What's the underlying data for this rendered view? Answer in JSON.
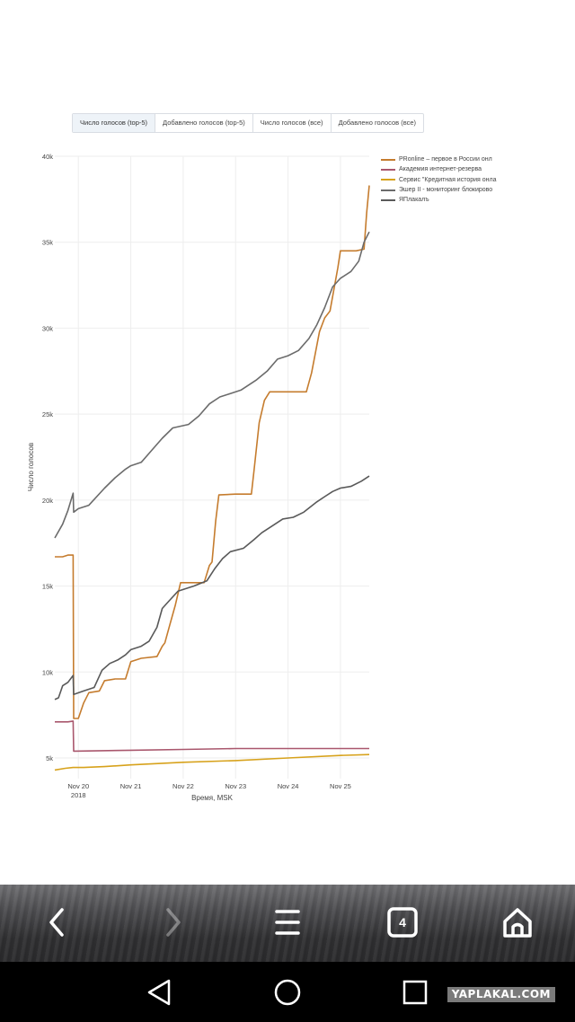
{
  "tabs": [
    {
      "label": "Число голосов (top-5)",
      "active": true
    },
    {
      "label": "Добавлено голосов (top-5)",
      "active": false
    },
    {
      "label": "Число голосов (все)",
      "active": false
    },
    {
      "label": "Добавлено голосов (все)",
      "active": false
    }
  ],
  "browser_nav": {
    "tab_count": "4"
  },
  "watermark": "YAPLAKAL.COM",
  "chart_data": {
    "type": "line",
    "xlabel": "Время, MSK",
    "ylabel": "Число голосов",
    "x_unit": "days, Nov 2018",
    "xlim": [
      19.55,
      25.55
    ],
    "ylim": [
      3800,
      40000
    ],
    "x_ticks": [
      {
        "x": 20,
        "label": "Nov 20",
        "sublabel": "2018"
      },
      {
        "x": 21,
        "label": "Nov 21",
        "sublabel": ""
      },
      {
        "x": 22,
        "label": "Nov 22",
        "sublabel": ""
      },
      {
        "x": 23,
        "label": "Nov 23",
        "sublabel": ""
      },
      {
        "x": 24,
        "label": "Nov 24",
        "sublabel": ""
      },
      {
        "x": 25,
        "label": "Nov 25",
        "sublabel": ""
      }
    ],
    "y_ticks": [
      {
        "y": 5000,
        "label": "5k"
      },
      {
        "y": 10000,
        "label": "10k"
      },
      {
        "y": 15000,
        "label": "15k"
      },
      {
        "y": 20000,
        "label": "20k"
      },
      {
        "y": 25000,
        "label": "25k"
      },
      {
        "y": 30000,
        "label": "30k"
      },
      {
        "y": 35000,
        "label": "35k"
      },
      {
        "y": 40000,
        "label": "40k"
      }
    ],
    "grid": true,
    "legend_position": "right",
    "series": [
      {
        "name": "PRonline – первое в России онл",
        "color": "#c57c2e",
        "points": [
          [
            19.55,
            16700
          ],
          [
            19.7,
            16700
          ],
          [
            19.8,
            16800
          ],
          [
            19.9,
            16800
          ],
          [
            19.91,
            7300
          ],
          [
            20.0,
            7300
          ],
          [
            20.1,
            8200
          ],
          [
            20.2,
            8800
          ],
          [
            20.4,
            8900
          ],
          [
            20.5,
            9500
          ],
          [
            20.7,
            9600
          ],
          [
            20.9,
            9600
          ],
          [
            21.0,
            10600
          ],
          [
            21.2,
            10800
          ],
          [
            21.5,
            10900
          ],
          [
            21.6,
            11500
          ],
          [
            21.65,
            11700
          ],
          [
            21.75,
            12800
          ],
          [
            21.85,
            13900
          ],
          [
            21.95,
            15200
          ],
          [
            22.2,
            15200
          ],
          [
            22.4,
            15200
          ],
          [
            22.5,
            16200
          ],
          [
            22.55,
            16400
          ],
          [
            22.62,
            18800
          ],
          [
            22.68,
            20300
          ],
          [
            23.0,
            20350
          ],
          [
            23.3,
            20350
          ],
          [
            23.35,
            21700
          ],
          [
            23.45,
            24500
          ],
          [
            23.55,
            25800
          ],
          [
            23.65,
            26300
          ],
          [
            24.0,
            26300
          ],
          [
            24.35,
            26300
          ],
          [
            24.45,
            27400
          ],
          [
            24.6,
            29800
          ],
          [
            24.7,
            30600
          ],
          [
            24.8,
            31000
          ],
          [
            24.95,
            33500
          ],
          [
            25.0,
            34500
          ],
          [
            25.3,
            34500
          ],
          [
            25.45,
            34600
          ],
          [
            25.5,
            36700
          ],
          [
            25.55,
            38300
          ]
        ]
      },
      {
        "name": "Академия интернет-резерва",
        "color": "#a9576d",
        "points": [
          [
            19.55,
            7100
          ],
          [
            19.8,
            7100
          ],
          [
            19.9,
            7150
          ],
          [
            19.91,
            5400
          ],
          [
            21.0,
            5450
          ],
          [
            22.0,
            5500
          ],
          [
            23.0,
            5550
          ],
          [
            24.0,
            5550
          ],
          [
            25.55,
            5550
          ]
        ]
      },
      {
        "name": "Сервис \"Кредитная история онла",
        "color": "#d7a21c",
        "points": [
          [
            19.55,
            4300
          ],
          [
            19.75,
            4400
          ],
          [
            19.9,
            4450
          ],
          [
            20.1,
            4450
          ],
          [
            20.5,
            4500
          ],
          [
            21.0,
            4600
          ],
          [
            22.0,
            4750
          ],
          [
            23.0,
            4850
          ],
          [
            24.0,
            5000
          ],
          [
            25.0,
            5150
          ],
          [
            25.55,
            5200
          ]
        ]
      },
      {
        "name": "Эшер II - мониторинг блокирово",
        "color": "#6b6b6b",
        "points": [
          [
            19.55,
            17800
          ],
          [
            19.7,
            18600
          ],
          [
            19.8,
            19400
          ],
          [
            19.9,
            20400
          ],
          [
            19.91,
            19300
          ],
          [
            20.0,
            19500
          ],
          [
            20.2,
            19700
          ],
          [
            20.5,
            20700
          ],
          [
            20.7,
            21300
          ],
          [
            20.9,
            21800
          ],
          [
            21.0,
            22000
          ],
          [
            21.2,
            22200
          ],
          [
            21.4,
            22900
          ],
          [
            21.6,
            23600
          ],
          [
            21.8,
            24200
          ],
          [
            22.1,
            24400
          ],
          [
            22.3,
            24900
          ],
          [
            22.5,
            25600
          ],
          [
            22.7,
            26000
          ],
          [
            22.9,
            26200
          ],
          [
            23.1,
            26400
          ],
          [
            23.4,
            27000
          ],
          [
            23.6,
            27500
          ],
          [
            23.8,
            28200
          ],
          [
            24.0,
            28400
          ],
          [
            24.2,
            28700
          ],
          [
            24.4,
            29400
          ],
          [
            24.55,
            30200
          ],
          [
            24.7,
            31200
          ],
          [
            24.85,
            32400
          ],
          [
            25.0,
            32900
          ],
          [
            25.2,
            33300
          ],
          [
            25.35,
            33900
          ],
          [
            25.45,
            35000
          ],
          [
            25.55,
            35600
          ]
        ]
      },
      {
        "name": "ЯПлакалъ",
        "color": "#595959",
        "points": [
          [
            19.55,
            8400
          ],
          [
            19.62,
            8500
          ],
          [
            19.7,
            9200
          ],
          [
            19.8,
            9400
          ],
          [
            19.9,
            9800
          ],
          [
            19.91,
            8700
          ],
          [
            20.1,
            8900
          ],
          [
            20.3,
            9100
          ],
          [
            20.45,
            10100
          ],
          [
            20.6,
            10500
          ],
          [
            20.75,
            10700
          ],
          [
            20.9,
            11000
          ],
          [
            21.0,
            11300
          ],
          [
            21.2,
            11500
          ],
          [
            21.35,
            11800
          ],
          [
            21.5,
            12600
          ],
          [
            21.6,
            13700
          ],
          [
            21.75,
            14200
          ],
          [
            21.9,
            14700
          ],
          [
            22.0,
            14800
          ],
          [
            22.2,
            15000
          ],
          [
            22.45,
            15300
          ],
          [
            22.6,
            16000
          ],
          [
            22.75,
            16600
          ],
          [
            22.9,
            17000
          ],
          [
            23.15,
            17200
          ],
          [
            23.35,
            17700
          ],
          [
            23.5,
            18100
          ],
          [
            23.7,
            18500
          ],
          [
            23.9,
            18900
          ],
          [
            24.1,
            19000
          ],
          [
            24.3,
            19300
          ],
          [
            24.55,
            19900
          ],
          [
            24.7,
            20200
          ],
          [
            24.85,
            20500
          ],
          [
            25.0,
            20700
          ],
          [
            25.2,
            20800
          ],
          [
            25.4,
            21100
          ],
          [
            25.55,
            21400
          ]
        ]
      }
    ]
  }
}
